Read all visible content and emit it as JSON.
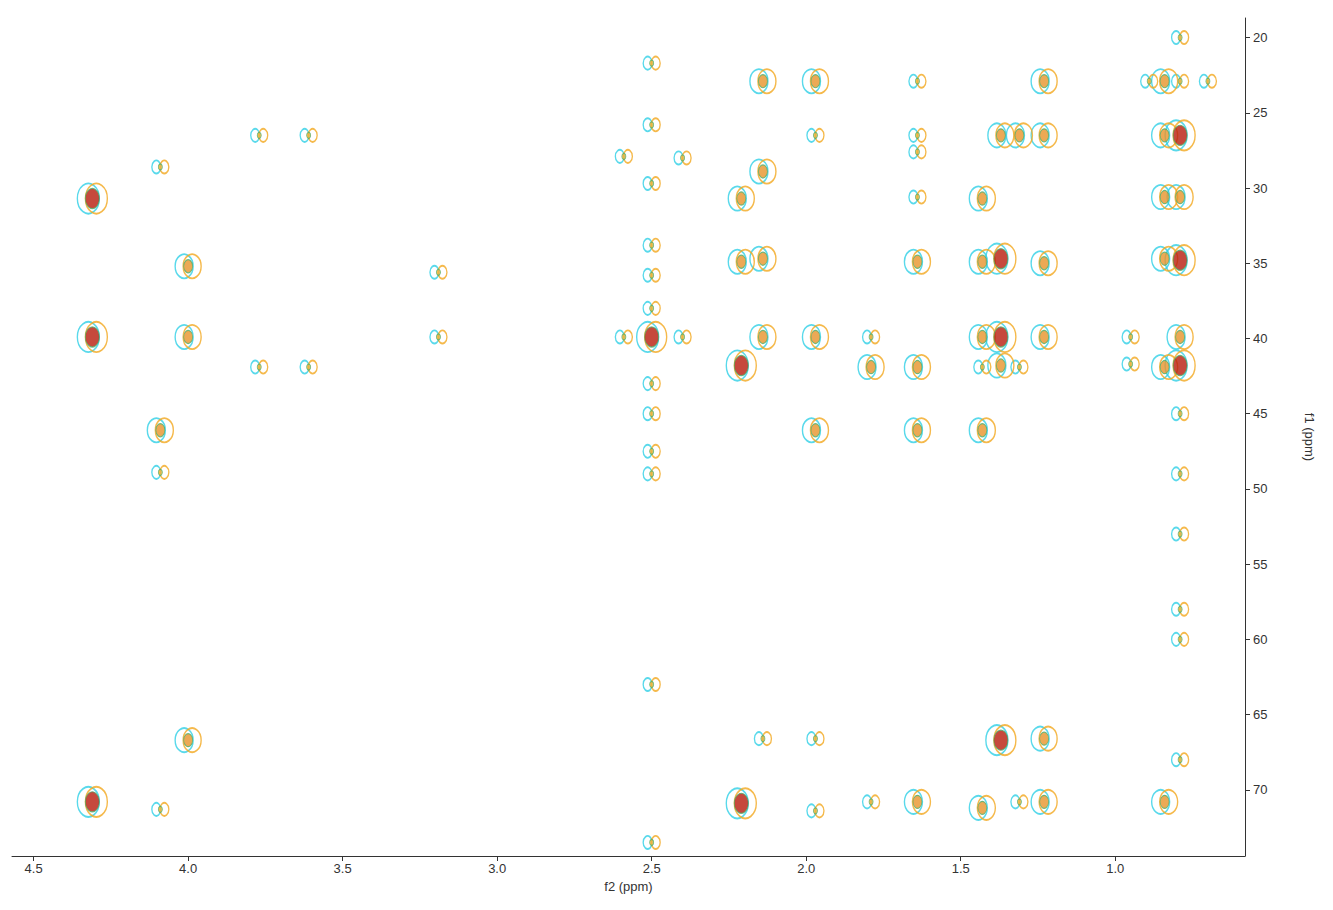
{
  "chart_data": {
    "type": "scatter",
    "x_label": "f2 (ppm)",
    "y_label": "f1 (ppm)",
    "xlim": [
      4.57,
      0.58
    ],
    "ylim": [
      74.4,
      18.7
    ],
    "xticks": [
      {
        "value": 1,
        "label": "1.0"
      },
      1.5,
      {
        "value": 2,
        "label": "2.0"
      },
      2.5,
      {
        "value": 3,
        "label": "3.0"
      },
      3.5,
      {
        "value": 4,
        "label": "4.0"
      },
      4.5
    ],
    "yticks": [
      20,
      25,
      30,
      35,
      40,
      45,
      50,
      55,
      60,
      65,
      70
    ],
    "grid": false,
    "x": [
      4.31,
      4.31,
      4.31,
      4.09,
      4.09,
      4.09,
      4.09,
      4.0,
      4.0,
      4.0,
      3.77,
      3.77,
      3.61,
      3.61,
      3.19,
      3.19,
      2.5,
      2.5,
      2.5,
      2.5,
      2.5,
      2.5,
      2.5,
      2.5,
      2.5,
      2.5,
      2.5,
      2.5,
      2.5,
      2.59,
      2.59,
      2.4,
      2.4,
      2.21,
      2.21,
      2.21,
      2.21,
      2.14,
      2.14,
      2.14,
      2.14,
      2.14,
      1.97,
      1.97,
      1.97,
      1.97,
      1.97,
      1.97,
      1.79,
      1.79,
      1.79,
      1.64,
      1.64,
      1.64,
      1.64,
      1.64,
      1.64,
      1.64,
      1.64,
      1.43,
      1.43,
      1.43,
      1.43,
      1.43,
      1.43,
      1.37,
      1.37,
      1.37,
      1.37,
      1.37,
      1.31,
      1.31,
      1.31,
      1.23,
      1.23,
      1.23,
      1.23,
      1.23,
      1.23,
      0.84,
      0.84,
      0.84,
      0.84,
      0.84,
      0.84,
      0.79,
      0.79,
      0.79,
      0.79,
      0.79,
      0.79,
      0.79,
      0.79,
      0.79,
      0.79,
      0.79,
      0.79,
      0.79,
      0.89,
      0.7,
      0.95,
      0.95
    ],
    "values": [
      30.7,
      39.9,
      70.8,
      28.6,
      46.1,
      48.9,
      71.3,
      35.2,
      39.9,
      66.7,
      26.5,
      41.9,
      26.5,
      41.9,
      35.6,
      39.9,
      39.9,
      21.7,
      25.8,
      29.7,
      33.8,
      35.8,
      38.0,
      43.0,
      45.0,
      47.5,
      49.0,
      63.0,
      73.5,
      27.9,
      39.9,
      39.9,
      28.0,
      30.7,
      34.9,
      41.8,
      70.9,
      22.9,
      28.9,
      34.7,
      39.9,
      66.6,
      22.9,
      26.5,
      39.9,
      46.1,
      66.6,
      71.4,
      39.9,
      41.9,
      70.8,
      22.9,
      26.5,
      27.6,
      30.6,
      34.9,
      41.9,
      46.1,
      70.8,
      30.7,
      34.9,
      39.9,
      41.9,
      46.1,
      71.2,
      26.5,
      34.7,
      39.9,
      41.8,
      66.7,
      26.5,
      41.9,
      70.8,
      22.9,
      26.5,
      35.0,
      39.9,
      66.6,
      70.8,
      22.9,
      26.5,
      30.6,
      34.7,
      41.9,
      70.8,
      26.5,
      30.6,
      34.8,
      39.9,
      41.8,
      22.9,
      20.0,
      45.0,
      49.0,
      53.0,
      58.0,
      60.0,
      68.0,
      22.9,
      22.9,
      39.9,
      41.7
    ],
    "intensity": [
      3,
      3,
      3,
      1,
      2,
      1,
      1,
      2,
      2,
      2,
      1,
      1,
      1,
      1,
      1,
      1,
      3,
      1,
      1,
      1,
      1,
      1,
      1,
      1,
      1,
      1,
      1,
      1,
      1,
      1,
      1,
      1,
      1,
      2,
      2,
      3,
      3,
      2,
      2,
      2,
      2,
      1,
      2,
      1,
      2,
      2,
      1,
      1,
      1,
      2,
      1,
      1,
      1,
      1,
      1,
      2,
      2,
      2,
      2,
      2,
      2,
      2,
      1,
      2,
      2,
      2,
      3,
      3,
      2,
      3,
      2,
      1,
      1,
      2,
      2,
      2,
      2,
      2,
      2,
      2,
      2,
      2,
      2,
      2,
      2,
      3,
      2,
      3,
      2,
      3,
      1,
      1,
      1,
      1,
      1,
      1,
      1,
      1,
      1,
      1,
      1,
      1
    ]
  }
}
